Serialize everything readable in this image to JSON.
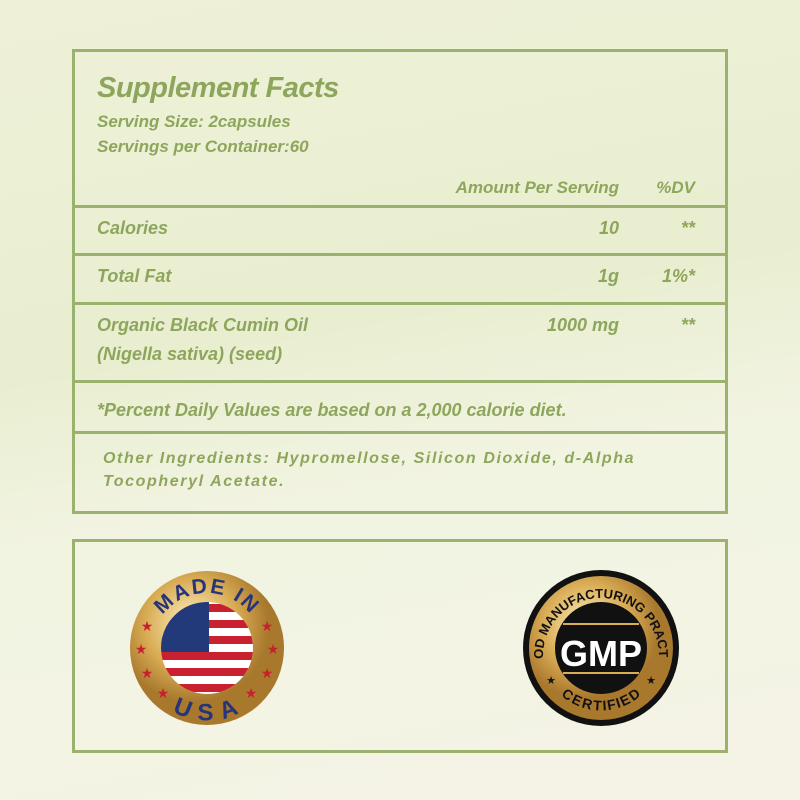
{
  "facts": {
    "title": "Supplement Facts",
    "serving_size": "Serving Size: 2capsules",
    "servings_per_container": "Servings per Container:60",
    "col_amount": "Amount Per Serving",
    "col_dv": "%DV",
    "rows": [
      {
        "name": "Calories",
        "amount": "10",
        "dv": "**"
      },
      {
        "name": "Total Fat",
        "amount": "1g",
        "dv": "1%*"
      },
      {
        "name": "Organic Black Cumin Oil",
        "name2": "(Nigella sativa) (seed)",
        "amount": "1000 mg",
        "dv": "**"
      }
    ],
    "footnote": "*Percent Daily Values are based on a 2,000 calorie diet.",
    "other_line1": "Other Ingredients: Hypromellose, Silicon Dioxide, d-Alpha",
    "other_line2": "Tocopheryl Acetate."
  },
  "badges": {
    "usa": {
      "top": "MADE IN",
      "bottom": "USA"
    },
    "gmp": {
      "top": "GOOD MANUFACTURING PRACTICE",
      "center": "GMP",
      "bottom": "CERTIFIED"
    }
  },
  "colors": {
    "text": "#8ea65c",
    "border": "#9bb26e"
  }
}
